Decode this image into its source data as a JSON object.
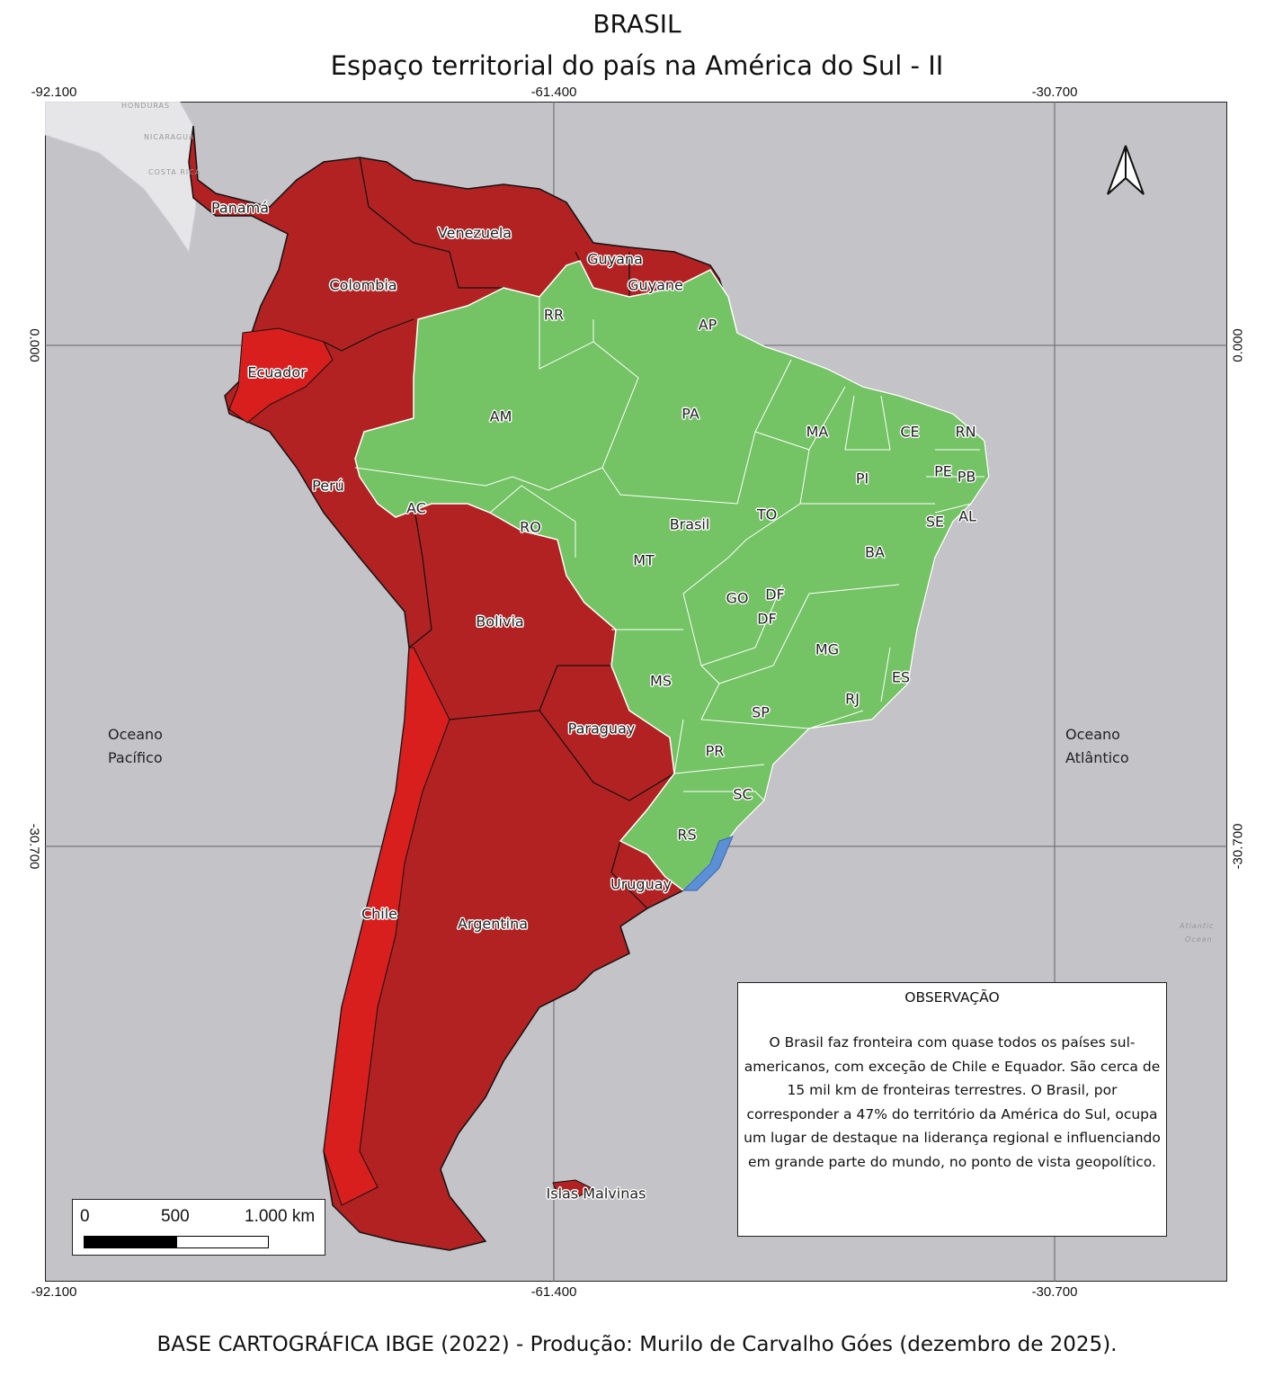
{
  "title": "BRASIL",
  "subtitle": "Espaço territorial do país na América do Sul - II",
  "colors": {
    "brazil": "#74c365",
    "neighbors": "#b22222",
    "non_bordering": "#d91e1e",
    "ocean": "#c3c3c8",
    "lagoon": "#5b8fd6"
  },
  "coordinates": {
    "top": [
      "-92.100",
      "-61.400",
      "-30.700"
    ],
    "bottom": [
      "-92.100",
      "-61.400",
      "-30.700"
    ],
    "left": [
      "0.000",
      "-30.700"
    ],
    "right": [
      "0.000",
      "-30.700"
    ]
  },
  "countries": [
    "Panamá",
    "Venezuela",
    "Colombia",
    "Guyana",
    "Guyane",
    "Ecuador",
    "Perú",
    "Brasil",
    "Bolivia",
    "Paraguay",
    "Uruguay",
    "Chile",
    "Argentina",
    "Islas Malvinas"
  ],
  "states": [
    "RR",
    "AP",
    "AM",
    "PA",
    "MA",
    "CE",
    "RN",
    "PE",
    "PB",
    "PI",
    "AC",
    "RO",
    "TO",
    "AL",
    "SE",
    "BA",
    "MT",
    "GO",
    "DF",
    "DF",
    "MG",
    "MS",
    "ES",
    "RJ",
    "SP",
    "PR",
    "SC",
    "RS"
  ],
  "oceans": {
    "pacific": [
      "Oceano",
      "Pacífico"
    ],
    "atlantic": [
      "Oceano",
      "Atlântico"
    ]
  },
  "basemap_labels": [
    "HONDURAS",
    "NICARAGUA",
    "COSTA RICA",
    "Atlantic",
    "Ocean"
  ],
  "north_arrow": "north-arrow-icon",
  "observation": {
    "title": "OBSERVAÇÃO",
    "text": "O Brasil faz fronteira com quase todos os países sul-americanos, com exceção de Chile e Equador. São cerca de 15 mil km de fronteiras terrestres. O Brasil, por corresponder a 47% do território da América do Sul, ocupa um lugar de destaque na liderança regional e influenciando em grande parte do mundo, no ponto de vista geopolítico."
  },
  "scale_bar": {
    "labels": [
      "0",
      "500",
      "1.000 km"
    ]
  },
  "footer": "BASE CARTOGRÁFICA IBGE (2022) - Produção: Murilo de Carvalho Góes (dezembro de 2025)."
}
